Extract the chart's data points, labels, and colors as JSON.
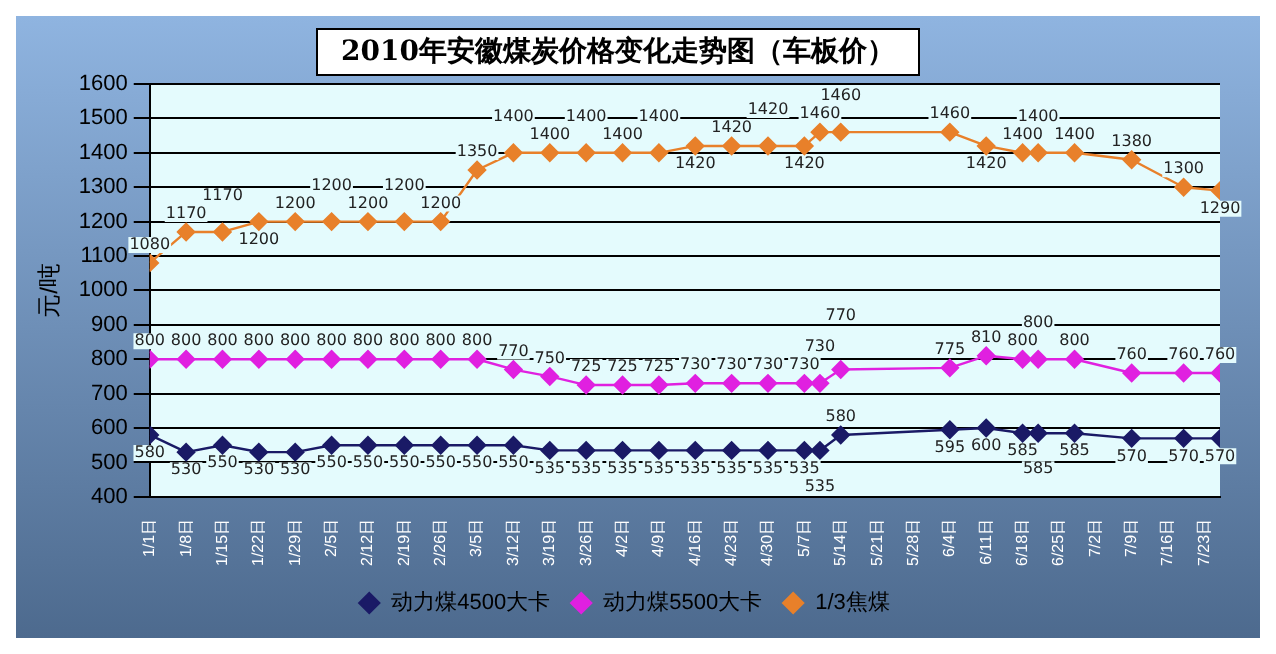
{
  "chart_data": {
    "type": "line",
    "title": "2010年安徽煤炭价格变化走势图（车板价）",
    "ylabel": "元/吨",
    "x": [
      "2010-01-01",
      "2010-01-08",
      "2010-01-15",
      "2010-01-22",
      "2010-01-29",
      "2010-02-05",
      "2010-02-12",
      "2010-02-19",
      "2010-02-26",
      "2010-03-05",
      "2010-03-12",
      "2010-03-19",
      "2010-03-26",
      "2010-04-02",
      "2010-04-09",
      "2010-04-16",
      "2010-04-23",
      "2010-04-30",
      "2010-05-07",
      "2010-05-10",
      "2010-05-14",
      "2010-06-04",
      "2010-06-11",
      "2010-06-18",
      "2010-06-21",
      "2010-06-28",
      "2010-07-09",
      "2010-07-19",
      "2010-07-26"
    ],
    "series": [
      {
        "name": "动力煤4500大卡",
        "color": "#1a1a66",
        "values": [
          580,
          530,
          550,
          530,
          530,
          550,
          550,
          550,
          550,
          550,
          550,
          535,
          535,
          535,
          535,
          535,
          535,
          535,
          535,
          535,
          580,
          595,
          600,
          585,
          585,
          585,
          570,
          570,
          570
        ]
      },
      {
        "name": "动力煤5500大卡",
        "color": "#e020e0",
        "values": [
          800,
          800,
          800,
          800,
          800,
          800,
          800,
          800,
          800,
          800,
          770,
          750,
          725,
          725,
          725,
          730,
          730,
          730,
          730,
          730,
          770,
          775,
          810,
          800,
          800,
          800,
          760,
          760,
          760
        ]
      },
      {
        "name": "1/3焦煤",
        "color": "#e8802a",
        "values": [
          1080,
          1170,
          1170,
          1200,
          1200,
          1200,
          1200,
          1200,
          1200,
          1350,
          1400,
          1400,
          1400,
          1400,
          1400,
          1420,
          1420,
          1420,
          1420,
          1460,
          1460,
          1460,
          1420,
          1400,
          1400,
          1400,
          1380,
          1300,
          1290
        ]
      }
    ],
    "xlim": [
      "2010-01-01",
      "2010-07-26"
    ],
    "xticks": [
      {
        "value": "2010-01-01",
        "label": "1/1日"
      },
      {
        "value": "2010-01-08",
        "label": "1/8日"
      },
      {
        "value": "2010-01-15",
        "label": "1/15日"
      },
      {
        "value": "2010-01-22",
        "label": "1/22日"
      },
      {
        "value": "2010-01-29",
        "label": "1/29日"
      },
      {
        "value": "2010-02-05",
        "label": "2/5日"
      },
      {
        "value": "2010-02-12",
        "label": "2/12日"
      },
      {
        "value": "2010-02-19",
        "label": "2/19日"
      },
      {
        "value": "2010-02-26",
        "label": "2/26日"
      },
      {
        "value": "2010-03-05",
        "label": "3/5日"
      },
      {
        "value": "2010-03-12",
        "label": "3/12日"
      },
      {
        "value": "2010-03-19",
        "label": "3/19日"
      },
      {
        "value": "2010-03-26",
        "label": "3/26日"
      },
      {
        "value": "2010-04-02",
        "label": "4/2日"
      },
      {
        "value": "2010-04-09",
        "label": "4/9日"
      },
      {
        "value": "2010-04-16",
        "label": "4/16日"
      },
      {
        "value": "2010-04-23",
        "label": "4/23日"
      },
      {
        "value": "2010-04-30",
        "label": "4/30日"
      },
      {
        "value": "2010-05-07",
        "label": "5/7日"
      },
      {
        "value": "2010-05-14",
        "label": "5/14日"
      },
      {
        "value": "2010-05-21",
        "label": "5/21日"
      },
      {
        "value": "2010-05-28",
        "label": "5/28日"
      },
      {
        "value": "2010-06-04",
        "label": "6/4日"
      },
      {
        "value": "2010-06-11",
        "label": "6/11日"
      },
      {
        "value": "2010-06-18",
        "label": "6/18日"
      },
      {
        "value": "2010-06-25",
        "label": "6/25日"
      },
      {
        "value": "2010-07-02",
        "label": "7/2日"
      },
      {
        "value": "2010-07-09",
        "label": "7/9日"
      },
      {
        "value": "2010-07-16",
        "label": "7/16日"
      },
      {
        "value": "2010-07-23",
        "label": "7/23日"
      }
    ],
    "ylim": [
      400,
      1600
    ],
    "yticks": [
      400,
      500,
      600,
      700,
      800,
      900,
      1000,
      1100,
      1200,
      1300,
      1400,
      1500,
      1600
    ],
    "grid": "y",
    "legend": "bottom",
    "marker": "diamond",
    "line_style": "solid",
    "data_labels": true
  }
}
